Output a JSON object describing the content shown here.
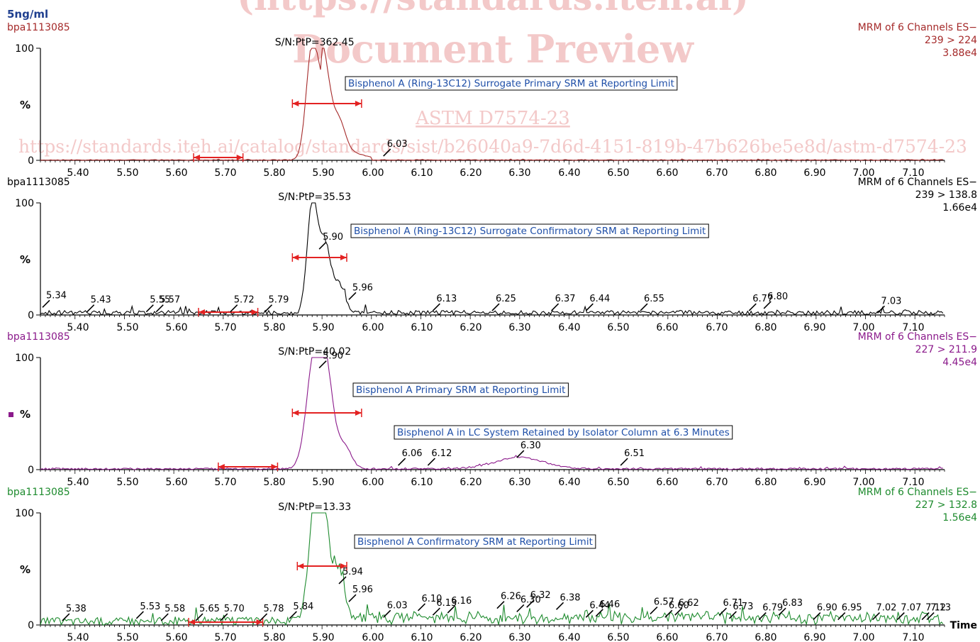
{
  "sample": "5ng/ml",
  "watermark": {
    "url_top": "(https://standards.iteh.ai)",
    "preview": "Document Preview",
    "standard": "ASTM D7574-23",
    "catalog": "https://standards.iteh.ai/catalog/standards/sist/b26040a9-7d6d-4151-819b-47b626be5e8d/astm-d7574-23"
  },
  "chart_data": [
    {
      "type": "line",
      "file": "bpa1113085",
      "function": "MRM of 6 Channels ES−",
      "transition": "239 > 224",
      "intensity": "3.88e4",
      "color": "#a52a2a",
      "sn": "S/N:PtP=362.45",
      "annotation": "Bisphenol A (Ring-13C12) Surrogate Primary SRM at Reporting Limit",
      "xlim": [
        5.33,
        7.16
      ],
      "ylim": [
        0,
        100
      ],
      "ylabel": "%",
      "ticks": [
        "5.40",
        "5.50",
        "5.60",
        "5.70",
        "5.80",
        "5.90",
        "6.00",
        "6.10",
        "6.20",
        "6.30",
        "6.40",
        "6.50",
        "6.60",
        "6.70",
        "6.80",
        "6.90",
        "7.00",
        "7.10"
      ],
      "peak_labels": [
        {
          "x": 6.03,
          "y": 5,
          "label": "6.03"
        }
      ],
      "noise_range": [
        5.64,
        5.74
      ],
      "peak_range": [
        5.84,
        5.98
      ],
      "peaks": [
        {
          "center": 5.88,
          "height": 100,
          "width": 0.012
        },
        {
          "center": 5.905,
          "height": 55,
          "width": 0.012
        },
        {
          "center": 5.935,
          "height": 22,
          "width": 0.012
        }
      ],
      "noise": 0.6
    },
    {
      "type": "line",
      "file": "bpa1113085",
      "function": "MRM of 6 Channels ES−",
      "transition": "239 > 138.8",
      "intensity": "1.66e4",
      "color": "#000000",
      "sn": "S/N:PtP=35.53",
      "annotation": "Bisphenol A (Ring-13C12) Surrogate Confirmatory SRM at Reporting Limit",
      "xlim": [
        5.33,
        7.16
      ],
      "ylim": [
        0,
        100
      ],
      "ylabel": "%",
      "ticks": [
        "5.40",
        "5.50",
        "5.60",
        "5.70",
        "5.80",
        "5.90",
        "6.00",
        "6.10",
        "6.20",
        "6.30",
        "6.40",
        "6.50",
        "6.60",
        "6.70",
        "6.80",
        "6.90",
        "7.00",
        "7.10"
      ],
      "peak_labels": [
        {
          "x": 5.34,
          "y": 8,
          "label": "5.34"
        },
        {
          "x": 5.43,
          "y": 4,
          "label": "5.43"
        },
        {
          "x": 5.55,
          "y": 4,
          "label": "5.55"
        },
        {
          "x": 5.57,
          "y": 4,
          "label": "5.57"
        },
        {
          "x": 5.72,
          "y": 4,
          "label": "5.72"
        },
        {
          "x": 5.79,
          "y": 4,
          "label": "5.79"
        },
        {
          "x": 5.9,
          "y": 60,
          "label": "5.90"
        },
        {
          "x": 5.96,
          "y": 15,
          "label": "5.96"
        },
        {
          "x": 6.13,
          "y": 5,
          "label": "6.13"
        },
        {
          "x": 6.25,
          "y": 5,
          "label": "6.25"
        },
        {
          "x": 6.37,
          "y": 5,
          "label": "6.37"
        },
        {
          "x": 6.44,
          "y": 5,
          "label": "6.44"
        },
        {
          "x": 6.55,
          "y": 5,
          "label": "6.55"
        },
        {
          "x": 6.77,
          "y": 5,
          "label": "6.77"
        },
        {
          "x": 6.8,
          "y": 7,
          "label": "6.80"
        },
        {
          "x": 7.03,
          "y": 3,
          "label": "7.03"
        }
      ],
      "noise_range": [
        5.65,
        5.77
      ],
      "peak_range": [
        5.84,
        5.95
      ],
      "peaks": [
        {
          "center": 5.88,
          "height": 98,
          "width": 0.01
        },
        {
          "center": 5.905,
          "height": 62,
          "width": 0.012
        },
        {
          "center": 5.935,
          "height": 25,
          "width": 0.012
        }
      ],
      "noise": 4
    },
    {
      "type": "line",
      "file": "bpa1113085",
      "function": "MRM of 6 Channels ES−",
      "transition": "227 > 211.9",
      "intensity": "4.45e4",
      "color": "#8b1a8b",
      "sn": "S/N:PtP=40.02",
      "annotation": "Bisphenol A Primary SRM at Reporting Limit",
      "annotation2": "Bisphenol A in LC System Retained by Isolator Column at 6.3 Minutes",
      "xlim": [
        5.33,
        7.16
      ],
      "ylim": [
        0,
        100
      ],
      "ylabel": "%",
      "ticks": [
        "5.40",
        "5.50",
        "5.60",
        "5.70",
        "5.80",
        "5.90",
        "6.00",
        "6.10",
        "6.20",
        "6.30",
        "6.40",
        "6.50",
        "6.60",
        "6.70",
        "6.80",
        "6.90",
        "7.00",
        "7.10"
      ],
      "peak_labels": [
        {
          "x": 5.9,
          "y": 92,
          "label": "5.90"
        },
        {
          "x": 6.06,
          "y": 5,
          "label": "6.06"
        },
        {
          "x": 6.12,
          "y": 5,
          "label": "6.12"
        },
        {
          "x": 6.3,
          "y": 12,
          "label": "6.30"
        },
        {
          "x": 6.51,
          "y": 5,
          "label": "6.51"
        }
      ],
      "noise_range": [
        5.69,
        5.81
      ],
      "peak_range": [
        5.84,
        5.98
      ],
      "peaks": [
        {
          "center": 5.885,
          "height": 100,
          "width": 0.016
        },
        {
          "center": 5.91,
          "height": 70,
          "width": 0.014
        },
        {
          "center": 5.945,
          "height": 20,
          "width": 0.014
        },
        {
          "center": 6.3,
          "height": 10,
          "width": 0.05
        }
      ],
      "noise": 1.5
    },
    {
      "type": "line",
      "file": "bpa1113085",
      "function": "MRM of 6 Channels ES−",
      "transition": "227 > 132.8",
      "intensity": "1.56e4",
      "color": "#1e8b2e",
      "sn": "S/N:PtP=13.33",
      "annotation": "Bisphenol A Confirmatory SRM at Reporting Limit",
      "xlabel": "Time",
      "xlim": [
        5.33,
        7.16
      ],
      "ylim": [
        0,
        100
      ],
      "ylabel": "%",
      "ticks": [
        "5.40",
        "5.50",
        "5.60",
        "5.70",
        "5.80",
        "5.90",
        "6.00",
        "6.10",
        "6.20",
        "6.30",
        "6.40",
        "6.50",
        "6.60",
        "6.70",
        "6.80",
        "6.90",
        "7.00",
        "7.10"
      ],
      "peak_labels": [
        {
          "x": 5.38,
          "y": 5,
          "label": "5.38"
        },
        {
          "x": 5.53,
          "y": 7,
          "label": "5.53"
        },
        {
          "x": 5.58,
          "y": 5,
          "label": "5.58"
        },
        {
          "x": 5.65,
          "y": 5,
          "label": "5.65"
        },
        {
          "x": 5.7,
          "y": 5,
          "label": "5.70"
        },
        {
          "x": 5.78,
          "y": 5,
          "label": "5.78"
        },
        {
          "x": 5.84,
          "y": 7,
          "label": "5.84"
        },
        {
          "x": 5.94,
          "y": 38,
          "label": "5.94"
        },
        {
          "x": 5.96,
          "y": 22,
          "label": "5.96"
        },
        {
          "x": 6.03,
          "y": 8,
          "label": "6.03"
        },
        {
          "x": 6.1,
          "y": 14,
          "label": "6.10"
        },
        {
          "x": 6.13,
          "y": 10,
          "label": "6.13"
        },
        {
          "x": 6.16,
          "y": 12,
          "label": "6.16"
        },
        {
          "x": 6.26,
          "y": 16,
          "label": "6.26"
        },
        {
          "x": 6.3,
          "y": 13,
          "label": "6.30"
        },
        {
          "x": 6.32,
          "y": 17,
          "label": "6.32"
        },
        {
          "x": 6.38,
          "y": 15,
          "label": "6.38"
        },
        {
          "x": 6.44,
          "y": 8,
          "label": "6.44"
        },
        {
          "x": 6.46,
          "y": 9,
          "label": "6.46"
        },
        {
          "x": 6.57,
          "y": 11,
          "label": "6.57"
        },
        {
          "x": 6.6,
          "y": 8,
          "label": "6.60"
        },
        {
          "x": 6.62,
          "y": 10,
          "label": "6.62"
        },
        {
          "x": 6.71,
          "y": 10,
          "label": "6.71"
        },
        {
          "x": 6.73,
          "y": 7,
          "label": "6.73"
        },
        {
          "x": 6.79,
          "y": 6,
          "label": "6.79"
        },
        {
          "x": 6.83,
          "y": 10,
          "label": "6.83"
        },
        {
          "x": 6.9,
          "y": 6,
          "label": "6.90"
        },
        {
          "x": 6.95,
          "y": 6,
          "label": "6.95"
        },
        {
          "x": 7.02,
          "y": 6,
          "label": "7.02"
        },
        {
          "x": 7.07,
          "y": 6,
          "label": "7.07"
        },
        {
          "x": 7.12,
          "y": 6,
          "label": "7.12"
        },
        {
          "x": 7.13,
          "y": 6,
          "label": "7.13"
        }
      ],
      "noise_range": [
        5.63,
        5.78
      ],
      "peak_range": [
        5.85,
        5.95
      ],
      "peaks": [
        {
          "center": 5.885,
          "height": 100,
          "width": 0.012
        },
        {
          "center": 5.905,
          "height": 85,
          "width": 0.012
        },
        {
          "center": 5.935,
          "height": 45,
          "width": 0.01
        }
      ],
      "noise": 7
    }
  ]
}
